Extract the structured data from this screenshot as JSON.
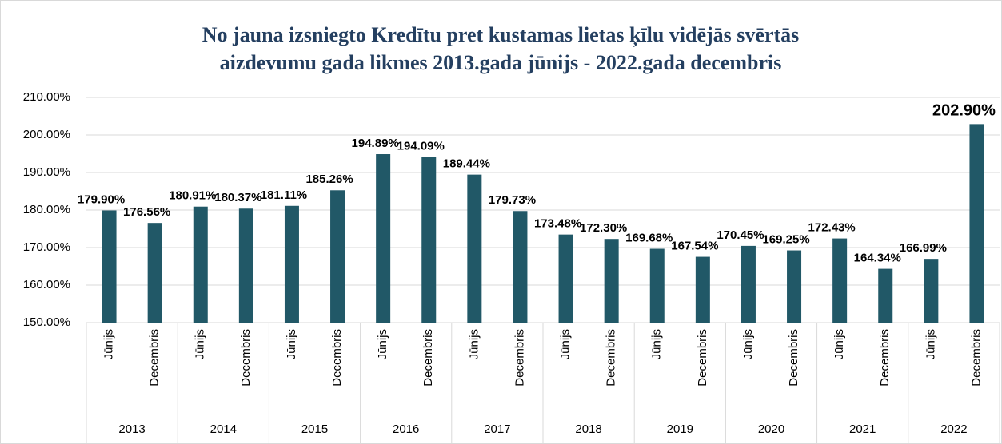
{
  "chart_data": {
    "type": "bar",
    "title": [
      "No jauna izsniegto Kredītu pret kustamas lietas ķīlu vidējās svērtās",
      "aizdevumu gada likmes 2013.gada jūnijs - 2022.gada decembris"
    ],
    "categories": [
      "Jūnijs",
      "Decembris",
      "Jūnijs",
      "Decembris",
      "Jūnijs",
      "Decembris",
      "Jūnijs",
      "Decembris",
      "Jūnijs",
      "Decembris",
      "Jūnijs",
      "Decembris",
      "Jūnijs",
      "Decembris",
      "Jūnijs",
      "Decembris",
      "Jūnijs",
      "Decembris",
      "Jūnijs",
      "Decembris"
    ],
    "category_groups": [
      "2013",
      "2014",
      "2015",
      "2016",
      "2017",
      "2018",
      "2019",
      "2020",
      "2021",
      "2022"
    ],
    "values": [
      179.9,
      176.56,
      180.91,
      180.37,
      181.11,
      185.26,
      194.89,
      194.09,
      189.44,
      179.73,
      173.48,
      172.3,
      169.68,
      167.54,
      170.45,
      169.25,
      172.43,
      164.34,
      166.99,
      202.9
    ],
    "value_labels": [
      "179.90%",
      "176.56%",
      "180.91%",
      "180.37%",
      "181.11%",
      "185.26%",
      "194.89%",
      "194.09%",
      "189.44%",
      "179.73%",
      "173.48%",
      "172.30%",
      "169.68%",
      "167.54%",
      "170.45%",
      "169.25%",
      "172.43%",
      "164.34%",
      "166.99%",
      "202.90%"
    ],
    "color": "#215867",
    "ylim": [
      150,
      210
    ],
    "yticks": [
      {
        "value": 150,
        "label": "150.00%"
      },
      {
        "value": 160,
        "label": "160.00%"
      },
      {
        "value": 170,
        "label": "170.00%"
      },
      {
        "value": 180,
        "label": "180.00%"
      },
      {
        "value": 190,
        "label": "190.00%"
      },
      {
        "value": 200,
        "label": "200.00%"
      },
      {
        "value": 210,
        "label": "210.00%"
      }
    ],
    "grid": true
  }
}
